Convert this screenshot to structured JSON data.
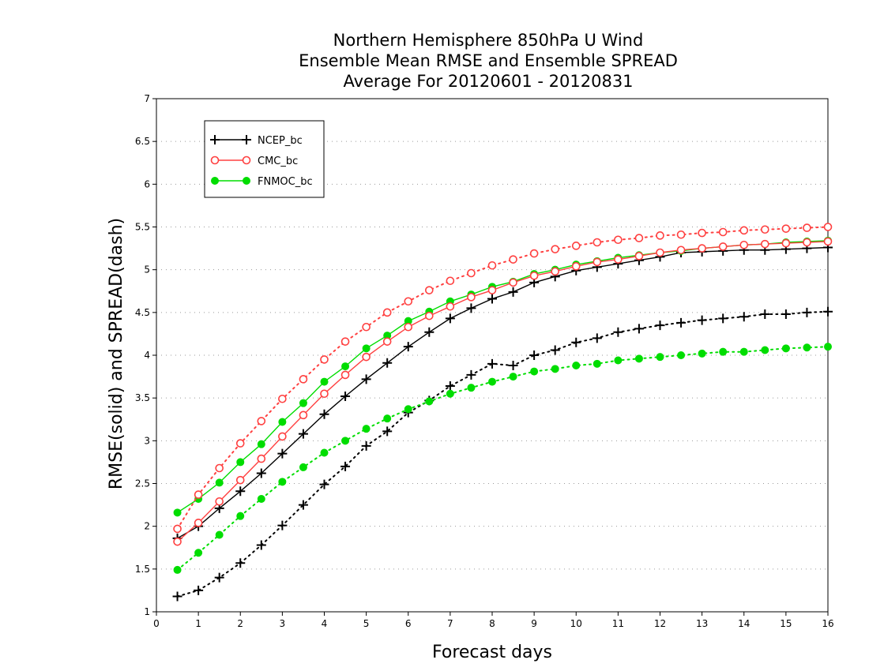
{
  "chart_data": {
    "type": "line",
    "title": [
      "Northern Hemisphere 850hPa U Wind",
      "Ensemble Mean RMSE and Ensemble SPREAD",
      "Average For 20120601 - 20120831"
    ],
    "xlabel": "Forecast days",
    "ylabel": "RMSE(solid) and SPREAD(dash)",
    "xlim": [
      0,
      16
    ],
    "ylim": [
      1,
      7
    ],
    "xticks": [
      "0",
      "1",
      "2",
      "3",
      "4",
      "5",
      "6",
      "7",
      "8",
      "9",
      "10",
      "11",
      "12",
      "13",
      "14",
      "15",
      "16"
    ],
    "yticks": [
      "1",
      "1.5",
      "2",
      "2.5",
      "3",
      "3.5",
      "4",
      "4.5",
      "5",
      "5.5",
      "6",
      "6.5",
      "7"
    ],
    "grid": true,
    "legend_position": "top-left",
    "x": [
      0.5,
      1,
      1.5,
      2,
      2.5,
      3,
      3.5,
      4,
      4.5,
      5,
      5.5,
      6,
      6.5,
      7,
      7.5,
      8,
      8.5,
      9,
      9.5,
      10,
      10.5,
      11,
      11.5,
      12,
      12.5,
      13,
      13.5,
      14,
      14.5,
      15,
      15.5,
      16
    ],
    "series": [
      {
        "name": "NCEP_bc",
        "color": "#000000",
        "marker": "plus",
        "rmse": [
          1.86,
          2.0,
          2.21,
          2.41,
          2.62,
          2.85,
          3.08,
          3.31,
          3.52,
          3.72,
          3.91,
          4.1,
          4.27,
          4.43,
          4.55,
          4.66,
          4.74,
          4.85,
          4.92,
          4.99,
          5.03,
          5.07,
          5.11,
          5.15,
          5.2,
          5.21,
          5.22,
          5.23,
          5.23,
          5.24,
          5.25,
          5.26
        ],
        "spread": [
          1.18,
          1.25,
          1.4,
          1.57,
          1.78,
          2.01,
          2.25,
          2.49,
          2.7,
          2.94,
          3.11,
          3.33,
          3.47,
          3.64,
          3.77,
          3.9,
          3.88,
          4.0,
          4.06,
          4.15,
          4.2,
          4.27,
          4.31,
          4.35,
          4.38,
          4.41,
          4.43,
          4.45,
          4.48,
          4.48,
          4.5,
          4.51
        ]
      },
      {
        "name": "CMC_bc",
        "color": "#ff4040",
        "marker": "open-circle",
        "rmse": [
          1.82,
          2.04,
          2.29,
          2.54,
          2.79,
          3.05,
          3.3,
          3.55,
          3.77,
          3.98,
          4.16,
          4.33,
          4.46,
          4.57,
          4.68,
          4.76,
          4.85,
          4.93,
          4.98,
          5.04,
          5.09,
          5.12,
          5.16,
          5.2,
          5.23,
          5.25,
          5.27,
          5.29,
          5.3,
          5.31,
          5.32,
          5.33
        ],
        "spread": [
          1.97,
          2.37,
          2.68,
          2.97,
          3.23,
          3.49,
          3.72,
          3.95,
          4.16,
          4.33,
          4.5,
          4.63,
          4.76,
          4.87,
          4.96,
          5.05,
          5.12,
          5.19,
          5.24,
          5.28,
          5.32,
          5.35,
          5.37,
          5.4,
          5.41,
          5.43,
          5.44,
          5.46,
          5.47,
          5.48,
          5.49,
          5.5
        ]
      },
      {
        "name": "FNMOC_bc",
        "color": "#00dd00",
        "marker": "filled-circle",
        "rmse": [
          2.16,
          2.32,
          2.51,
          2.75,
          2.96,
          3.22,
          3.44,
          3.69,
          3.87,
          4.08,
          4.23,
          4.4,
          4.51,
          4.63,
          4.71,
          4.8,
          4.86,
          4.95,
          5.0,
          5.06,
          5.1,
          5.14,
          5.17,
          5.2,
          5.22,
          5.25,
          5.27,
          5.29,
          5.3,
          5.32,
          5.33,
          5.34
        ],
        "spread": [
          1.49,
          1.69,
          1.9,
          2.12,
          2.32,
          2.52,
          2.69,
          2.86,
          3.0,
          3.14,
          3.26,
          3.37,
          3.46,
          3.55,
          3.62,
          3.69,
          3.75,
          3.81,
          3.84,
          3.88,
          3.9,
          3.94,
          3.96,
          3.98,
          4.0,
          4.02,
          4.04,
          4.04,
          4.06,
          4.08,
          4.09,
          4.1
        ]
      }
    ]
  }
}
